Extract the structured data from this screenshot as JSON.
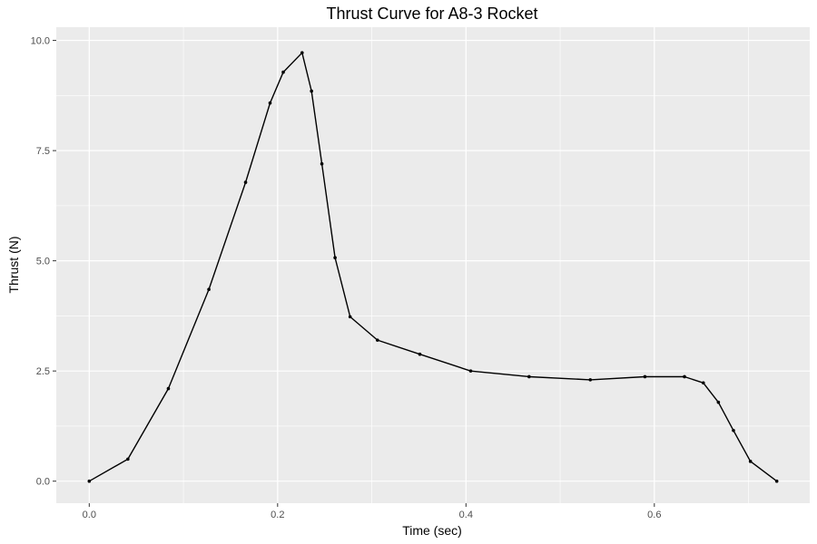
{
  "chart_data": {
    "type": "line",
    "title": "Thrust Curve for A8-3 Rocket",
    "xlabel": "Time (sec)",
    "ylabel": "Thrust (N)",
    "xlim": [
      -0.035,
      0.765
    ],
    "ylim": [
      -0.5,
      10.3
    ],
    "x_ticks": [
      0.0,
      0.2,
      0.4,
      0.6
    ],
    "x_tick_labels": [
      "0.0",
      "0.2",
      "0.4",
      "0.6"
    ],
    "x_minor_ticks": [
      0.1,
      0.3,
      0.5,
      0.7
    ],
    "y_ticks": [
      0.0,
      2.5,
      5.0,
      7.5,
      10.0
    ],
    "y_tick_labels": [
      "0.0",
      "2.5",
      "5.0",
      "7.5",
      "10.0"
    ],
    "y_minor_ticks": [
      1.25,
      3.75,
      6.25,
      8.75
    ],
    "grid": true,
    "panel_color": "#ebebeb",
    "line_color": "#000000",
    "series": [
      {
        "x": [
          0.0,
          0.041,
          0.084,
          0.127,
          0.166,
          0.192,
          0.206,
          0.226,
          0.236,
          0.247,
          0.261,
          0.277,
          0.306,
          0.351,
          0.405,
          0.467,
          0.532,
          0.59,
          0.632,
          0.652,
          0.668,
          0.684,
          0.702,
          0.73
        ],
        "y": [
          0.0,
          0.5,
          2.1,
          4.35,
          6.78,
          8.58,
          9.28,
          9.72,
          8.85,
          7.2,
          5.07,
          3.73,
          3.2,
          2.88,
          2.5,
          2.37,
          2.3,
          2.37,
          2.37,
          2.23,
          1.79,
          1.15,
          0.45,
          0.0
        ]
      }
    ]
  }
}
